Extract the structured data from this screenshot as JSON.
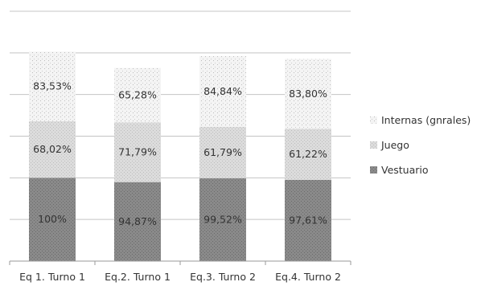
{
  "chart_data": {
    "type": "bar",
    "stacked": true,
    "title": "",
    "xlabel": "",
    "ylabel": "",
    "categories": [
      "Eq 1. Turno 1",
      "Eq.2. Turno 1",
      "Eq.3. Turno 2",
      "Eq.4. Turno 2"
    ],
    "series": [
      {
        "name": "Vestuario",
        "values": [
          100,
          94.87,
          99.52,
          97.61
        ],
        "labels": [
          "100%",
          "94,87%",
          "99,52%",
          "97,61%"
        ],
        "color": "#7d7d7d",
        "pattern": "dense-dots"
      },
      {
        "name": "Juego",
        "values": [
          68.02,
          71.79,
          61.79,
          61.22
        ],
        "labels": [
          "68,02%",
          "71,79%",
          "61,79%",
          "61,22%"
        ],
        "color": "#d4d4d4",
        "pattern": "light-dots"
      },
      {
        "name": "Internas (gnrales)",
        "values": [
          83.53,
          65.28,
          84.84,
          83.8
        ],
        "labels": [
          "83,53%",
          "65,28%",
          "84,84%",
          "83,80%"
        ],
        "color": "#f2f2f2",
        "pattern": "sparse-dots"
      }
    ],
    "ylim": [
      0,
      300
    ],
    "y_axis_labels_visible": false,
    "grid": true,
    "legend_position": "right"
  }
}
